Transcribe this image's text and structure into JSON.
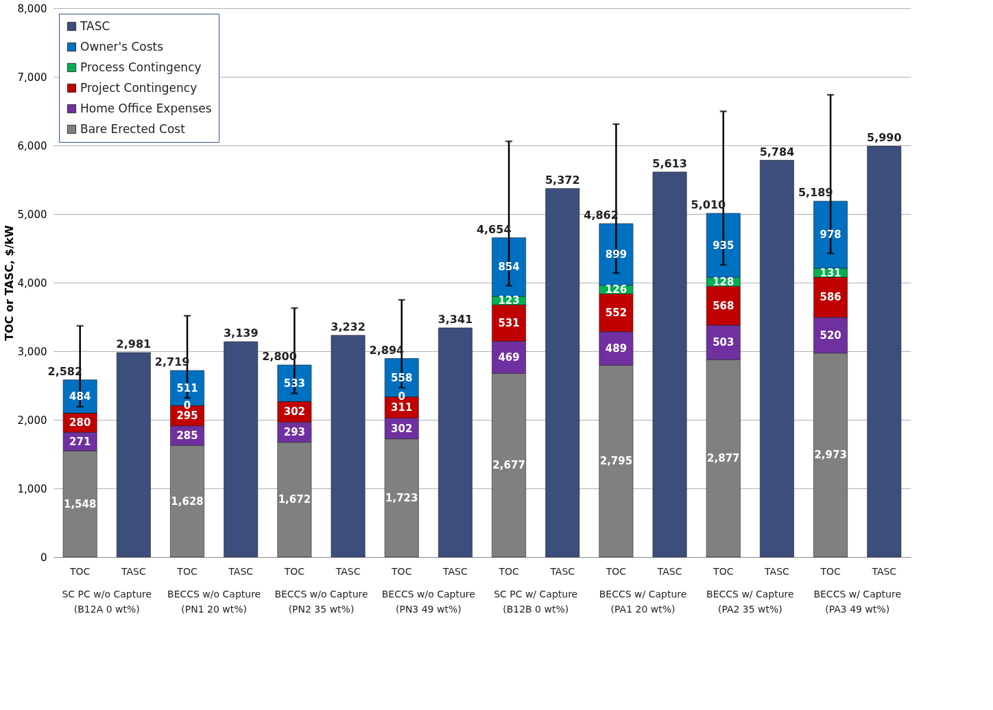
{
  "chart_data": {
    "type": "bar",
    "stacked": true,
    "ylabel": "TOC or TASC, $/kW",
    "categories": [
      "TOC",
      "TASC",
      "TOC",
      "TASC",
      "TOC",
      "TASC",
      "TOC",
      "TASC",
      "TOC",
      "TASC",
      "TOC",
      "TASC",
      "TOC",
      "TASC",
      "TOC",
      "TASC"
    ],
    "series": [
      {
        "name": "Bare Erected Cost",
        "color": "#808080",
        "values": [
          1548,
          null,
          1628,
          null,
          1672,
          null,
          1723,
          null,
          2677,
          null,
          2795,
          null,
          2877,
          null,
          2973,
          null
        ],
        "value_labels": [
          "1,548",
          null,
          "1,628",
          null,
          "1,672",
          null,
          "1,723",
          null,
          "2,677",
          null,
          "2,795",
          null,
          "2,877",
          null,
          "2,973",
          null
        ]
      },
      {
        "name": "Home Office Expenses",
        "color": "#7030a0",
        "values": [
          271,
          null,
          285,
          null,
          293,
          null,
          302,
          null,
          469,
          null,
          489,
          null,
          503,
          null,
          520,
          null
        ],
        "value_labels": [
          "271",
          null,
          "285",
          null,
          "293",
          null,
          "302",
          null,
          "469",
          null,
          "489",
          null,
          "503",
          null,
          "520",
          null
        ]
      },
      {
        "name": "Project Contingency",
        "color": "#c00000",
        "values": [
          280,
          null,
          295,
          null,
          302,
          null,
          311,
          null,
          531,
          null,
          552,
          null,
          568,
          null,
          586,
          null
        ],
        "value_labels": [
          "280",
          null,
          "295",
          null,
          "302",
          null,
          "311",
          null,
          "531",
          null,
          "552",
          null,
          "568",
          null,
          "586",
          null
        ]
      },
      {
        "name": "Process Contingency",
        "color": "#00b050",
        "values": [
          0,
          null,
          0,
          null,
          0,
          null,
          0,
          null,
          123,
          null,
          126,
          null,
          128,
          null,
          131,
          null
        ],
        "value_labels": [
          null,
          null,
          "0",
          null,
          null,
          null,
          "0",
          null,
          "123",
          null,
          "126",
          null,
          "128",
          null,
          "131",
          null
        ]
      },
      {
        "name": "Owner's Costs",
        "color": "#0070c0",
        "values": [
          484,
          null,
          511,
          null,
          533,
          null,
          558,
          null,
          854,
          null,
          899,
          null,
          935,
          null,
          978,
          null
        ],
        "value_labels": [
          "484",
          null,
          "511",
          null,
          "533",
          null,
          "558",
          null,
          "854",
          null,
          "899",
          null,
          "935",
          null,
          "978",
          null
        ],
        "errors": [
          [
            2190,
            3370
          ],
          null,
          [
            2320,
            3517
          ],
          null,
          [
            2385,
            3629
          ],
          null,
          [
            2469,
            3749
          ],
          null,
          [
            3954,
            6060
          ],
          null,
          [
            4139,
            6311
          ],
          null,
          [
            4260,
            6497
          ],
          null,
          [
            4427,
            6738
          ],
          null
        ]
      },
      {
        "name": "TASC",
        "color": "#3c4e7c",
        "values": [
          null,
          2981,
          null,
          3139,
          null,
          3232,
          null,
          3341,
          null,
          5372,
          null,
          5613,
          null,
          5784,
          null,
          5990
        ]
      }
    ],
    "totals": [
      "2,582",
      "2,981",
      "2,719",
      "3,139",
      "2,800",
      "3,232",
      "2,894",
      "3,341",
      "4,654",
      "5,372",
      "4,862",
      "5,613",
      "5,010",
      "5,784",
      "5,189",
      "5,990"
    ],
    "ylim": [
      0,
      8000
    ],
    "yticks": [
      {
        "value": 0,
        "label": "0"
      },
      {
        "value": 1000,
        "label": "1,000"
      },
      {
        "value": 2000,
        "label": "2,000"
      },
      {
        "value": 3000,
        "label": "3,000"
      },
      {
        "value": 4000,
        "label": "4,000"
      },
      {
        "value": 5000,
        "label": "5,000"
      },
      {
        "value": 6000,
        "label": "6,000"
      },
      {
        "value": 7000,
        "label": "7,000"
      },
      {
        "value": 8000,
        "label": "8,000"
      }
    ],
    "grid": "y",
    "legend": "top left",
    "annotations": [
      "SC PC w/o Capture\n(B12A 0 wt%)",
      "BECCS w/o Capture\n(PN1 20 wt%)",
      "BECCS w/o Capture\n(PN2 35 wt%)",
      "BECCS w/o Capture\n(PN3 49 wt%)",
      "SC PC w/ Capture\n(B12B 0 wt%)",
      "BECCS w/ Capture\n(PA1 20 wt%)",
      "BECCS w/ Capture\n(PA2 35 wt%)",
      "BECCS w/ Capture\n(PA3 49 wt%)"
    ]
  }
}
